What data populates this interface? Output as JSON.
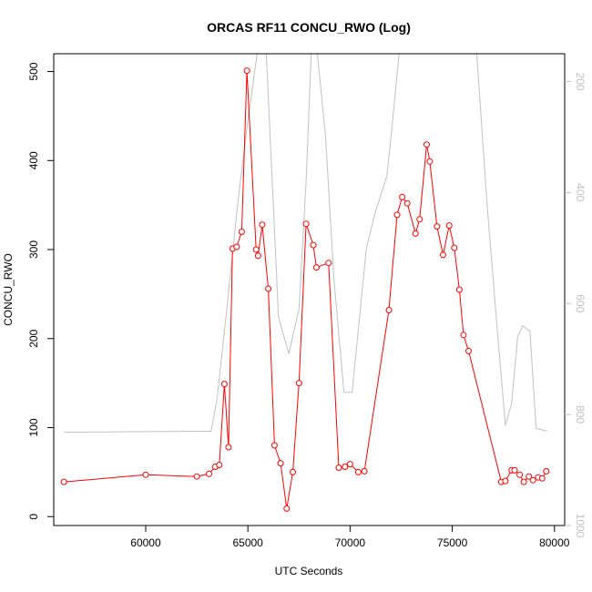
{
  "chart_data": {
    "type": "line",
    "title": "ORCAS RF11 CONCU_RWO (Log)",
    "xlabel": "UTC Seconds",
    "ylabel": "CONCU_RWO",
    "xlim": [
      55500,
      80500
    ],
    "ylim": [
      -10,
      520
    ],
    "y2lim": [
      1000,
      150
    ],
    "x_ticks": [
      60000,
      65000,
      70000,
      75000,
      80000
    ],
    "y_ticks": [
      0,
      100,
      200,
      300,
      400,
      500
    ],
    "y2_ticks": [
      200,
      400,
      600,
      800,
      1000
    ],
    "grid": false,
    "colors": {
      "series": "#ff0000",
      "secondary": "#c0c0c0",
      "axis": "#000000"
    },
    "series": [
      {
        "values_x": [
          56000,
          60000,
          62500,
          63100,
          63400,
          63600,
          63850,
          64050,
          64250,
          64450,
          64700,
          64950,
          65400,
          65500,
          65700,
          66000,
          66300,
          66600,
          66900,
          67200,
          67500,
          67850,
          68200,
          68350,
          68950,
          69450,
          69750,
          70000,
          70400,
          70700,
          71900,
          72300,
          72550,
          72800,
          73200,
          73400,
          73750,
          73900,
          74250,
          74550,
          74850,
          75100,
          75350,
          75550,
          75800,
          77400,
          77600,
          77900,
          78050,
          78300,
          78500,
          78750,
          78950,
          79200,
          79400,
          79600
        ],
        "values": [
          39,
          47,
          45,
          48,
          56,
          58,
          149,
          78,
          301,
          303,
          320,
          501,
          300,
          293,
          328,
          256,
          80,
          60,
          9,
          50,
          150,
          329,
          305,
          280,
          285,
          55,
          56,
          59,
          50,
          51,
          232,
          339,
          359,
          352,
          318,
          334,
          418,
          399,
          326,
          294,
          327,
          302,
          255,
          204,
          186,
          39,
          40,
          52,
          52,
          47,
          39,
          45,
          41,
          44,
          43,
          51
        ]
      }
    ],
    "secondary_series": {
      "values_x": [
        56000,
        63200,
        63500,
        64000,
        64500,
        65000,
        65450,
        65900,
        66500,
        67000,
        67500,
        67850,
        68100,
        68400,
        68800,
        69200,
        69700,
        70100,
        70800,
        71200,
        71800,
        72000,
        72400,
        72700,
        73000,
        73300,
        73700,
        74300,
        74700,
        75000,
        75400,
        75800,
        76200,
        76700,
        77200,
        77600,
        77900,
        78200,
        78450,
        78800,
        79100,
        79650
      ],
      "values": [
        832,
        830,
        770,
        600,
        420,
        270,
        150,
        150,
        625,
        690,
        610,
        380,
        150,
        150,
        300,
        550,
        760,
        760,
        500,
        440,
        370,
        300,
        150,
        150,
        150,
        150,
        150,
        150,
        150,
        150,
        150,
        150,
        150,
        420,
        645,
        820,
        780,
        660,
        640,
        650,
        825,
        830
      ]
    }
  }
}
